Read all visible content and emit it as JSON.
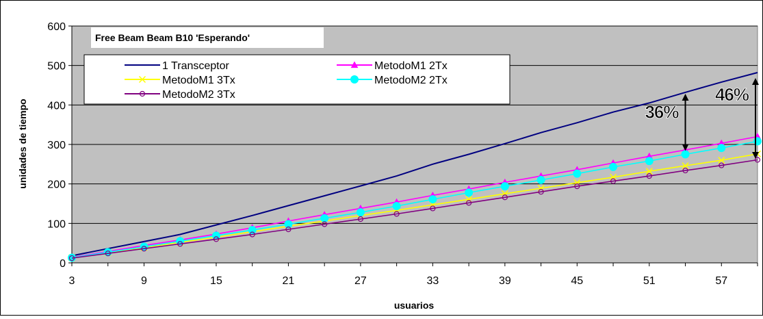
{
  "chart_data": {
    "type": "line",
    "title": "Free Beam Beam B10 'Esperando'",
    "xlabel": "usuarios",
    "ylabel": "unidades de tiempo",
    "x": [
      3,
      6,
      9,
      12,
      15,
      18,
      21,
      24,
      27,
      30,
      33,
      36,
      39,
      42,
      45,
      48,
      51,
      54,
      57,
      60
    ],
    "x_tick_labels": [
      "3",
      "9",
      "15",
      "21",
      "27",
      "33",
      "39",
      "45",
      "51",
      "57"
    ],
    "y_tick_labels": [
      "0",
      "100",
      "200",
      "300",
      "400",
      "500",
      "600"
    ],
    "xlim": [
      3,
      60
    ],
    "ylim": [
      0,
      600
    ],
    "grid": "horizontal",
    "legend_position": "top-left",
    "plot_background": "#c0c0c0",
    "series": [
      {
        "name": "1 Transceptor",
        "color": "#000080",
        "marker": "none",
        "values": [
          18,
          36,
          54,
          72,
          96,
          120,
          145,
          170,
          195,
          220,
          250,
          275,
          302,
          330,
          355,
          382,
          405,
          432,
          458,
          482
        ]
      },
      {
        "name": "MetodoM1 2Tx",
        "color": "#ff00ff",
        "marker": "triangle",
        "values": [
          14,
          29,
          44,
          58,
          73,
          89,
          106,
          122,
          138,
          154,
          171,
          187,
          204,
          220,
          236,
          253,
          270,
          286,
          303,
          320
        ]
      },
      {
        "name": "MetodoM1 3Tx",
        "color": "#ffff00",
        "marker": "x",
        "values": [
          13,
          26,
          39,
          52,
          65,
          79,
          93,
          106,
          120,
          133,
          147,
          161,
          175,
          189,
          203,
          217,
          232,
          246,
          260,
          276
        ]
      },
      {
        "name": "MetodoM2 2Tx",
        "color": "#00ffff",
        "marker": "circle",
        "values": [
          13,
          27,
          41,
          55,
          69,
          83,
          98,
          113,
          128,
          144,
          161,
          178,
          194,
          210,
          226,
          243,
          258,
          275,
          291,
          308
        ]
      },
      {
        "name": "MetodoM2 3Tx",
        "color": "#800080",
        "marker": "open-circle",
        "values": [
          12,
          24,
          36,
          48,
          60,
          72,
          85,
          98,
          111,
          124,
          138,
          152,
          166,
          180,
          194,
          207,
          220,
          234,
          247,
          261
        ]
      }
    ],
    "annotations": [
      {
        "text": "36%",
        "x": 54,
        "y_from": 282,
        "y_to": 430
      },
      {
        "text": "46%",
        "x": 60,
        "y_from": 262,
        "y_to": 470
      }
    ]
  }
}
